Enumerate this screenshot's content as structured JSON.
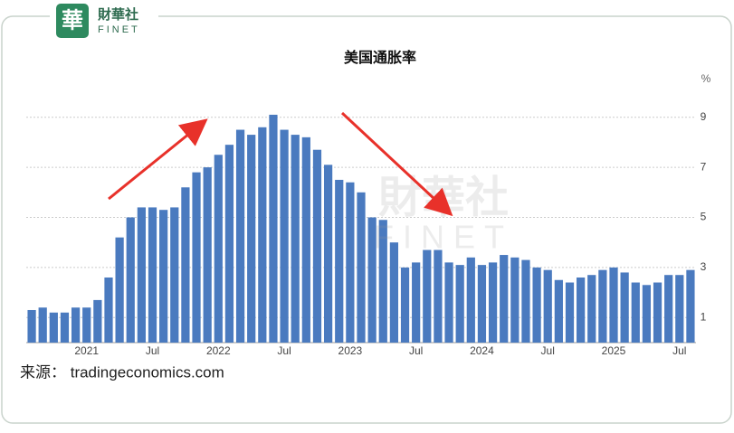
{
  "logo": {
    "mark": "華",
    "cn": "財華社",
    "en": "FINET"
  },
  "chart_data": {
    "type": "bar",
    "title": "美国通胀率",
    "y_unit": "%",
    "source": "来源： tradingeconomics.com",
    "categories": [
      null,
      null,
      null,
      null,
      null,
      "2021",
      null,
      null,
      null,
      null,
      null,
      "Jul",
      null,
      null,
      null,
      null,
      null,
      "2022",
      null,
      null,
      null,
      null,
      null,
      "Jul",
      null,
      null,
      null,
      null,
      null,
      "2023",
      null,
      null,
      null,
      null,
      null,
      "Jul",
      null,
      null,
      null,
      null,
      null,
      "2024",
      null,
      null,
      null,
      null,
      null,
      "Jul",
      null,
      null,
      null,
      null,
      null,
      "2025",
      null,
      null,
      null,
      null,
      null,
      "Jul",
      null
    ],
    "values": [
      1.3,
      1.4,
      1.2,
      1.2,
      1.4,
      1.4,
      1.7,
      2.6,
      4.2,
      5.0,
      5.4,
      5.4,
      5.3,
      5.4,
      6.2,
      6.8,
      7.0,
      7.5,
      7.9,
      8.5,
      8.3,
      8.6,
      9.1,
      8.5,
      8.3,
      8.2,
      7.7,
      7.1,
      6.5,
      6.4,
      6.0,
      5.0,
      4.9,
      4.0,
      3.0,
      3.2,
      3.7,
      3.7,
      3.2,
      3.1,
      3.4,
      3.1,
      3.2,
      3.5,
      3.4,
      3.3,
      3.0,
      2.9,
      2.5,
      2.4,
      2.6,
      2.7,
      2.9,
      3.0,
      2.8,
      2.4,
      2.3,
      2.4,
      2.7,
      2.7,
      2.9
    ],
    "color": "#4a7abf",
    "ylim": [
      0,
      10
    ],
    "yticks": [
      1,
      3,
      5,
      7,
      9
    ],
    "grid": true
  }
}
